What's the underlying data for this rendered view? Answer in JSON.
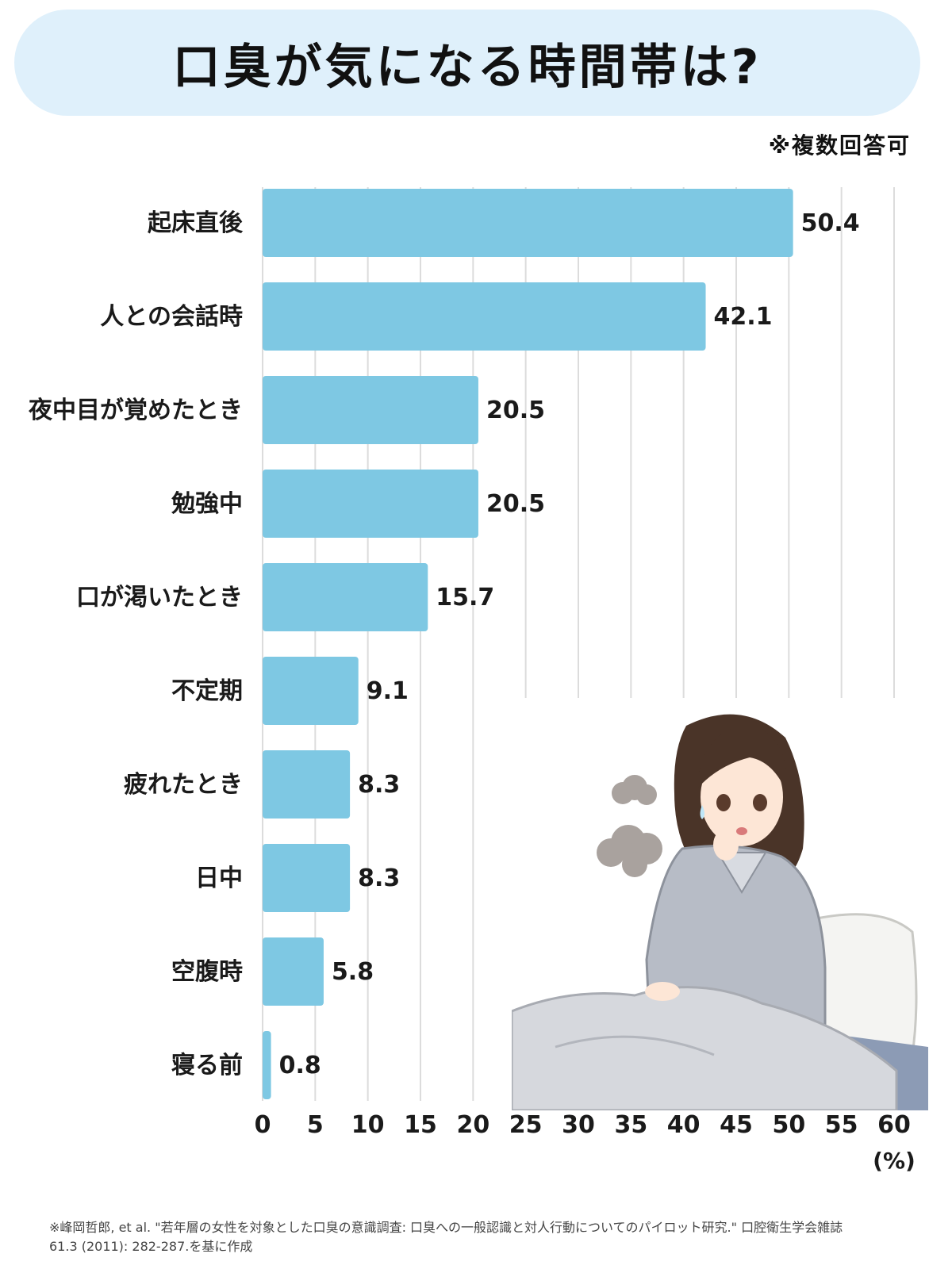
{
  "title": "口臭が気になる時間帯は?",
  "note": "※複数回答可",
  "source": {
    "line1": "※峰岡哲郎, et al. \"若年層の女性を対象とした口臭の意識調査: 口臭への一般認識と対人行動についてのパイロット研究.\" 口腔衛生学会雑誌",
    "line2": "61.3 (2011): 282-287.を基に作成"
  },
  "illustration": {
    "icon": "woman-in-bed-illustration"
  },
  "colors": {
    "bar": "#7ec8e3",
    "banner": "#dff0fb",
    "grid": "#dcdcdc"
  },
  "chart_data": {
    "type": "bar",
    "orientation": "horizontal",
    "categories": [
      "起床直後",
      "人との会話時",
      "夜中目が覚めたとき",
      "勉強中",
      "口が渇いたとき",
      "不定期",
      "疲れたとき",
      "日中",
      "空腹時",
      "寝る前"
    ],
    "values": [
      50.4,
      42.1,
      20.5,
      20.5,
      15.7,
      9.1,
      8.3,
      8.3,
      5.8,
      0.8
    ],
    "value_labels": [
      "50.4",
      "42.1",
      "20.5",
      "20.5",
      "15.7",
      "9.1",
      "8.3",
      "8.3",
      "5.8",
      "0.8"
    ],
    "title": "口臭が気になる時間帯は?",
    "xlabel": "(%)",
    "ylabel": "",
    "xlim": [
      0,
      60
    ],
    "xticks": [
      0,
      5,
      10,
      15,
      20,
      25,
      30,
      35,
      40,
      45,
      50,
      55,
      60
    ],
    "grid": true,
    "legend": "none"
  }
}
